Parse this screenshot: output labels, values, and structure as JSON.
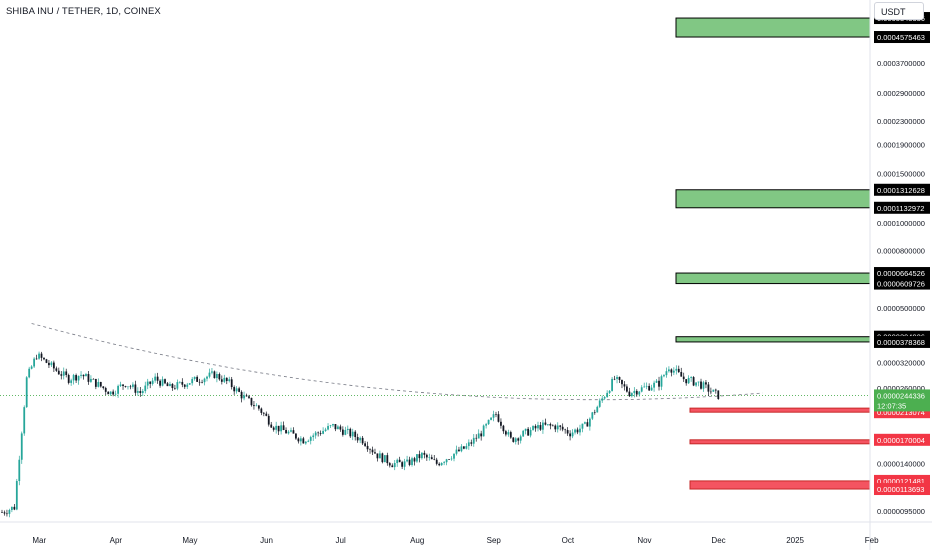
{
  "header": {
    "title": "SHIBA INU / TETHER, 1D, COINEX",
    "currency": "USDT"
  },
  "colors": {
    "up": "#26a69a",
    "down": "#131722",
    "resistance_zone": "#81c784",
    "support_zone": "#f23645",
    "label_black": "#000000",
    "label_red": "#f23645",
    "current_price": "#4caf50"
  },
  "chart_data": {
    "type": "candlestick",
    "title": "SHIBA INU / TETHER, 1D, COINEX",
    "x_labels": [
      "Mar",
      "Apr",
      "May",
      "Jun",
      "Jul",
      "Aug",
      "Sep",
      "Oct",
      "Nov",
      "Dec",
      "2025",
      "Feb"
    ],
    "y_scale": "log",
    "y_tick_labels": [
      "0.0003700000",
      "0.0002900000",
      "0.0002300000",
      "0.0001900000",
      "0.0001500000",
      "0.0001000000",
      "0.0000800000",
      "0.0000500000",
      "0.0000320000",
      "0.0000260000",
      "0.0000140000",
      "0.0000095000"
    ],
    "y_tick_values": [
      0.00037,
      0.00029,
      0.00023,
      0.00019,
      0.00015,
      0.0001,
      8e-05,
      5e-05,
      3.2e-05,
      2.6e-05,
      1.4e-05,
      9.5e-06
    ],
    "current_price": {
      "value": 2.44336e-05,
      "label": "0.0000244336",
      "countdown": "12:07:35"
    },
    "zones": [
      {
        "kind": "resistance",
        "top": 0.0005343336,
        "bottom": 0.0004575463,
        "top_label": "0.0005343336",
        "bottom_label": "0.0004575463"
      },
      {
        "kind": "resistance",
        "top": 0.0001312628,
        "bottom": 0.0001132972,
        "top_label": "0.0001312628",
        "bottom_label": "0.0001132972"
      },
      {
        "kind": "resistance",
        "top": 6.64526e-05,
        "bottom": 6.09726e-05,
        "top_label": "0.0000664526",
        "bottom_label": "0.0000609726"
      },
      {
        "kind": "resistance",
        "top": 3.94926e-05,
        "bottom": 3.78368e-05,
        "top_label": "0.0000394926",
        "bottom_label": "0.0000378368"
      },
      {
        "kind": "support",
        "top": 2.20263e-05,
        "bottom": 2.13074e-05,
        "top_label": "0.0000220263",
        "bottom_label": "0.0000213074"
      },
      {
        "kind": "support",
        "top": 1.70004e-05,
        "bottom": 1.66e-05,
        "top_label": "0.0000170004",
        "bottom_label": ""
      },
      {
        "kind": "support",
        "top": 1.21481e-05,
        "bottom": 1.13693e-05,
        "top_label": "0.0000121481",
        "bottom_label": "0.0000113693"
      }
    ],
    "series": [
      {
        "days": [
          0,
          5,
          10,
          14,
          18,
          22,
          27,
          32,
          38,
          44,
          50,
          56,
          62,
          68,
          74,
          80,
          86,
          92,
          98,
          104,
          110,
          116,
          122,
          128,
          134,
          140,
          146,
          152,
          158,
          164,
          170,
          176,
          182,
          188,
          194,
          200,
          206,
          212,
          218,
          224,
          230,
          236,
          242,
          248,
          254,
          260,
          266,
          270,
          276,
          282,
          288,
          290
        ],
        "close": [
          9.4e-06,
          9.8e-06,
          2.8e-05,
          3.4e-05,
          3.2e-05,
          3e-05,
          2.8e-05,
          2.9e-05,
          2.7e-05,
          2.5e-05,
          2.7e-05,
          2.5e-05,
          2.8e-05,
          2.6e-05,
          2.7e-05,
          2.8e-05,
          2.9e-05,
          2.7e-05,
          2.4e-05,
          2.2e-05,
          1.9e-05,
          1.8e-05,
          1.7e-05,
          1.8e-05,
          1.9e-05,
          1.8e-05,
          1.7e-05,
          1.5e-05,
          1.4e-05,
          1.4e-05,
          1.5e-05,
          1.4e-05,
          1.5e-05,
          1.6e-05,
          1.8e-05,
          2.1e-05,
          1.7e-05,
          1.8e-05,
          1.9e-05,
          1.9e-05,
          1.8e-05,
          1.9e-05,
          2.3e-05,
          2.8e-05,
          2.5e-05,
          2.6e-05,
          2.7e-05,
          3.1e-05,
          2.8e-05,
          2.7e-05,
          2.5e-05,
          2.44e-05
        ]
      }
    ],
    "trendline": {
      "style": "dashed",
      "from_day": 12,
      "from_price": 4.4e-05,
      "to_day": 310,
      "to_price": 2.5e-05
    }
  }
}
